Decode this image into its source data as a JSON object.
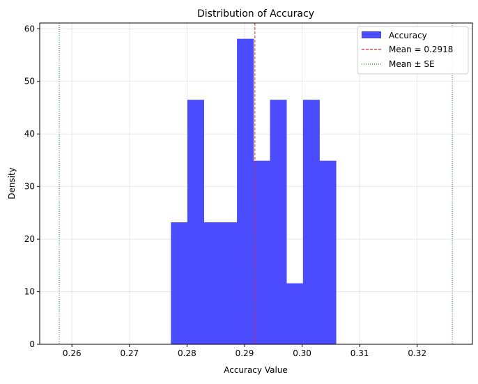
{
  "chart_data": {
    "type": "bar",
    "title": "Distribution of Accuracy",
    "xlabel": "Accuracy Value",
    "ylabel": "Density",
    "xlim": [
      0.2544,
      0.3296
    ],
    "ylim": [
      0,
      61.1
    ],
    "xticks": [
      0.26,
      0.27,
      0.28,
      0.29,
      0.3,
      0.31,
      0.32
    ],
    "xtick_labels": [
      "0.26",
      "0.27",
      "0.28",
      "0.29",
      "0.30",
      "0.31",
      "0.32"
    ],
    "yticks": [
      0,
      10,
      20,
      30,
      40,
      50,
      60
    ],
    "ytick_labels": [
      "0",
      "10",
      "20",
      "30",
      "40",
      "50",
      "60"
    ],
    "grid": true,
    "legend_position": "top-right",
    "bin_edges": [
      0.2772,
      0.28007,
      0.28294,
      0.28581,
      0.28868,
      0.29155,
      0.29442,
      0.29729,
      0.30016,
      0.30303,
      0.3059
    ],
    "values": [
      23.2,
      46.5,
      23.2,
      23.2,
      58.1,
      34.9,
      46.5,
      11.6,
      46.5,
      34.9
    ],
    "bar_color": "#4b4bff",
    "mean": 0.2918,
    "se_lower": 0.2578,
    "se_upper": 0.3261,
    "mean_color": "#d62728",
    "se_color": "#008000",
    "legend": [
      {
        "label": "Accuracy",
        "kind": "patch"
      },
      {
        "label": "Mean = 0.2918",
        "kind": "dashed"
      },
      {
        "label": "Mean ± SE",
        "kind": "dotted"
      }
    ]
  }
}
